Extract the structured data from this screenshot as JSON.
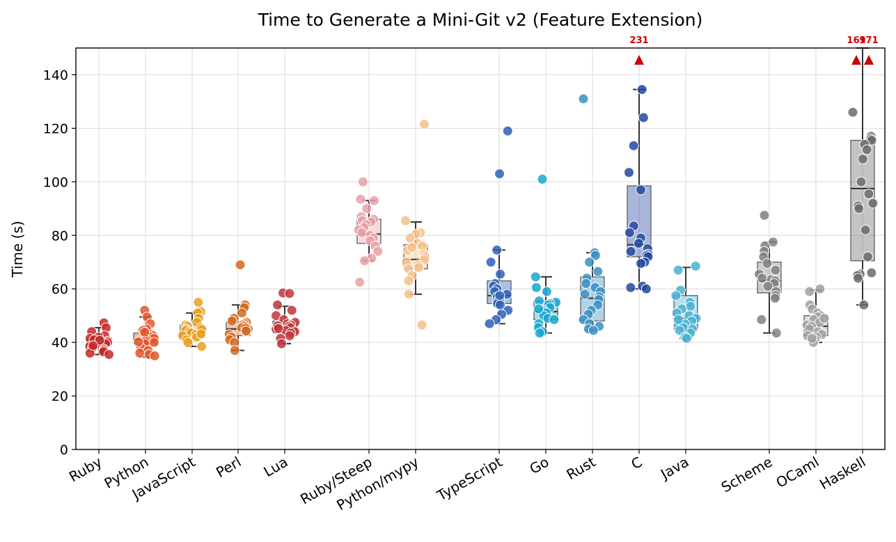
{
  "chart_data": {
    "type": "box",
    "title": "Time to Generate a Mini-Git v2 (Feature Extension)",
    "xlabel": "",
    "ylabel": "Time (s)",
    "ylim": [
      0,
      150
    ],
    "yticks": [
      0,
      20,
      40,
      60,
      80,
      100,
      120,
      140
    ],
    "grid": true,
    "overflow_color": "#cc0000",
    "series": [
      {
        "name": "Ruby",
        "color": "#c62828",
        "box": {
          "q1": 38.5,
          "median": 39.5,
          "q3": 41.5,
          "whislo": 35.5,
          "whishi": 45.5
        },
        "points": [
          47.3,
          45.5,
          44.0,
          42.5,
          42.0,
          41.5,
          41.0,
          40.5,
          40.0,
          39.5,
          39.0,
          38.5,
          38.0,
          37.5,
          37.0,
          36.5,
          36.0,
          35.5,
          40.8,
          38.8
        ],
        "overflow": []
      },
      {
        "name": "Python",
        "color": "#e0572a",
        "box": {
          "q1": 39.5,
          "median": 41.0,
          "q3": 43.5,
          "whislo": 34.5,
          "whishi": 49.5
        },
        "points": [
          52.0,
          49.5,
          47.0,
          45.0,
          44.5,
          43.0,
          42.5,
          42.0,
          41.5,
          41.0,
          40.5,
          40.0,
          39.5,
          38.0,
          37.0,
          36.0,
          35.5,
          35.0,
          43.8,
          40.2
        ],
        "overflow": []
      },
      {
        "name": "JavaScript",
        "color": "#e8a020",
        "box": {
          "q1": 42.0,
          "median": 44.0,
          "q3": 46.5,
          "whislo": 38.5,
          "whishi": 51.0
        },
        "points": [
          55.0,
          51.5,
          51.0,
          49.0,
          47.5,
          46.5,
          46.0,
          45.5,
          45.0,
          44.5,
          44.0,
          43.5,
          43.0,
          42.5,
          42.0,
          41.0,
          40.0,
          38.5,
          44.8,
          43.2
        ],
        "overflow": []
      },
      {
        "name": "Perl",
        "color": "#d2691e",
        "box": {
          "q1": 42.5,
          "median": 45.0,
          "q3": 47.5,
          "whislo": 37.0,
          "whishi": 54.0
        },
        "points": [
          69.0,
          54.0,
          53.0,
          51.0,
          49.0,
          48.0,
          47.5,
          47.0,
          46.5,
          46.0,
          45.5,
          45.0,
          44.0,
          43.0,
          42.0,
          41.0,
          40.0,
          37.0,
          45.3,
          44.3
        ],
        "overflow": []
      },
      {
        "name": "Lua",
        "color": "#c0353a",
        "box": {
          "q1": 43.5,
          "median": 45.5,
          "q3": 48.0,
          "whislo": 39.5,
          "whishi": 53.5
        },
        "points": [
          58.5,
          58.3,
          54.0,
          52.0,
          50.0,
          48.5,
          47.5,
          47.0,
          46.5,
          46.0,
          45.5,
          45.0,
          44.5,
          44.0,
          43.5,
          42.5,
          41.5,
          39.5,
          46.2,
          45.2
        ],
        "overflow": []
      },
      {
        "name": "Ruby/Steep",
        "color": "#e8a0a4",
        "box": {
          "q1": 77.0,
          "median": 80.5,
          "q3": 86.0,
          "whislo": 70.5,
          "whishi": 93.0
        },
        "points": [
          100.0,
          93.5,
          93.0,
          90.0,
          87.0,
          86.0,
          85.5,
          85.0,
          84.0,
          83.0,
          82.0,
          81.0,
          80.0,
          79.0,
          78.0,
          76.0,
          74.0,
          71.5,
          70.5,
          62.5
        ],
        "overflow": []
      },
      {
        "name": "Python/mypy",
        "color": "#f5c08a",
        "box": {
          "q1": 67.5,
          "median": 71.0,
          "q3": 76.5,
          "whislo": 58.0,
          "whishi": 85.0
        },
        "points": [
          121.5,
          85.5,
          81.0,
          80.5,
          79.0,
          77.0,
          76.0,
          74.5,
          73.0,
          72.0,
          71.0,
          70.0,
          69.0,
          68.0,
          67.5,
          65.0,
          63.0,
          58.0,
          46.5,
          75.5
        ],
        "overflow": []
      },
      {
        "name": "TypeScript",
        "color": "#2e62b8",
        "box": {
          "q1": 54.5,
          "median": 57.5,
          "q3": 63.0,
          "whislo": 47.0,
          "whishi": 74.5
        },
        "points": [
          119.0,
          103.0,
          74.5,
          70.0,
          65.5,
          62.0,
          61.0,
          60.0,
          59.0,
          58.0,
          57.0,
          56.0,
          55.0,
          54.5,
          54.0,
          52.0,
          50.5,
          48.5,
          47.0,
          57.5
        ],
        "overflow": []
      },
      {
        "name": "Go",
        "color": "#19a6cf",
        "box": {
          "q1": 48.5,
          "median": 51.5,
          "q3": 55.5,
          "whislo": 43.5,
          "whishi": 64.5
        },
        "points": [
          101.0,
          64.5,
          60.5,
          59.0,
          55.5,
          55.0,
          54.5,
          54.0,
          53.0,
          52.0,
          51.5,
          51.0,
          50.0,
          49.0,
          48.5,
          47.0,
          45.5,
          44.0,
          43.5,
          52.5
        ],
        "overflow": []
      },
      {
        "name": "Rust",
        "color": "#3a8fc4",
        "box": {
          "q1": 48.0,
          "median": 56.5,
          "q3": 64.5,
          "whislo": 44.5,
          "whishi": 73.5
        },
        "points": [
          131.0,
          73.5,
          72.5,
          70.0,
          66.5,
          64.0,
          62.0,
          60.5,
          59.0,
          57.0,
          56.0,
          54.0,
          52.0,
          50.5,
          48.5,
          47.0,
          46.0,
          45.0,
          44.5,
          58.0
        ],
        "overflow": []
      },
      {
        "name": "C",
        "color": "#2448a0",
        "box": {
          "q1": 72.0,
          "median": 76.5,
          "q3": 98.5,
          "whislo": 60.0,
          "whishi": 134.5
        },
        "points": [
          134.5,
          124.0,
          113.5,
          103.5,
          97.0,
          83.5,
          81.0,
          79.0,
          77.0,
          75.0,
          74.0,
          73.0,
          72.5,
          72.0,
          70.0,
          69.5,
          61.0,
          60.5,
          60.0
        ],
        "overflow": [
          {
            "value": 231,
            "label": "231"
          }
        ]
      },
      {
        "name": "Java",
        "color": "#4ab0d4",
        "box": {
          "q1": 45.0,
          "median": 49.0,
          "q3": 57.5,
          "whislo": 41.5,
          "whishi": 68.0
        },
        "points": [
          68.5,
          67.0,
          59.5,
          57.5,
          55.0,
          53.5,
          52.5,
          51.0,
          50.0,
          49.0,
          48.0,
          47.0,
          46.5,
          45.5,
          45.0,
          44.5,
          43.5,
          42.0,
          41.5,
          48.5
        ],
        "overflow": []
      },
      {
        "name": "Scheme",
        "color": "#808080",
        "box": {
          "q1": 58.5,
          "median": 63.0,
          "q3": 70.0,
          "whislo": 43.5,
          "whishi": 77.5
        },
        "points": [
          87.5,
          77.5,
          76.0,
          74.0,
          72.0,
          69.5,
          67.0,
          65.5,
          64.0,
          63.5,
          63.0,
          62.0,
          61.0,
          59.0,
          57.5,
          56.5,
          48.5,
          43.5
        ],
        "overflow": []
      },
      {
        "name": "OCaml",
        "color": "#a0a0a0",
        "box": {
          "q1": 42.5,
          "median": 46.0,
          "q3": 50.0,
          "whislo": 40.0,
          "whishi": 59.5
        },
        "points": [
          60.0,
          59.0,
          54.0,
          52.5,
          51.0,
          50.0,
          49.5,
          48.5,
          47.5,
          46.5,
          46.0,
          45.0,
          44.0,
          43.0,
          42.5,
          42.0,
          41.0,
          40.0,
          41.5,
          49.0
        ],
        "overflow": []
      },
      {
        "name": "Haskell",
        "color": "#6b6b6b",
        "box": {
          "q1": 70.5,
          "median": 97.5,
          "q3": 115.5,
          "whislo": 54.0,
          "whishi": 150.0
        },
        "points": [
          126.0,
          117.0,
          116.0,
          115.5,
          114.0,
          112.0,
          108.5,
          100.0,
          95.5,
          92.0,
          91.0,
          90.0,
          82.0,
          72.0,
          66.0,
          65.5,
          65.0,
          64.0,
          54.0
        ],
        "overflow": [
          {
            "value": 169,
            "label": "169"
          },
          {
            "value": 171,
            "label": "171"
          }
        ]
      }
    ]
  }
}
